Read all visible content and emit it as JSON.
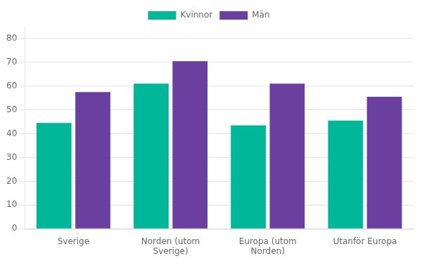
{
  "chart_data": {
    "type": "bar",
    "categories": [
      "Sverige",
      "Norden (utom\nSverige)",
      "Europa (utom\nNorden)",
      "Utanför Europa"
    ],
    "series": [
      {
        "name": "Kvinnor",
        "color": "#00B899",
        "values": [
          44.5,
          61.0,
          43.5,
          45.5
        ]
      },
      {
        "name": "Män",
        "color": "#6B3FA0",
        "values": [
          57.5,
          70.5,
          61.0,
          55.5
        ]
      }
    ],
    "ylim": [
      0,
      85
    ],
    "yticks": [
      0,
      10,
      20,
      30,
      40,
      50,
      60,
      70,
      80
    ],
    "grid": true,
    "legend": "top"
  }
}
